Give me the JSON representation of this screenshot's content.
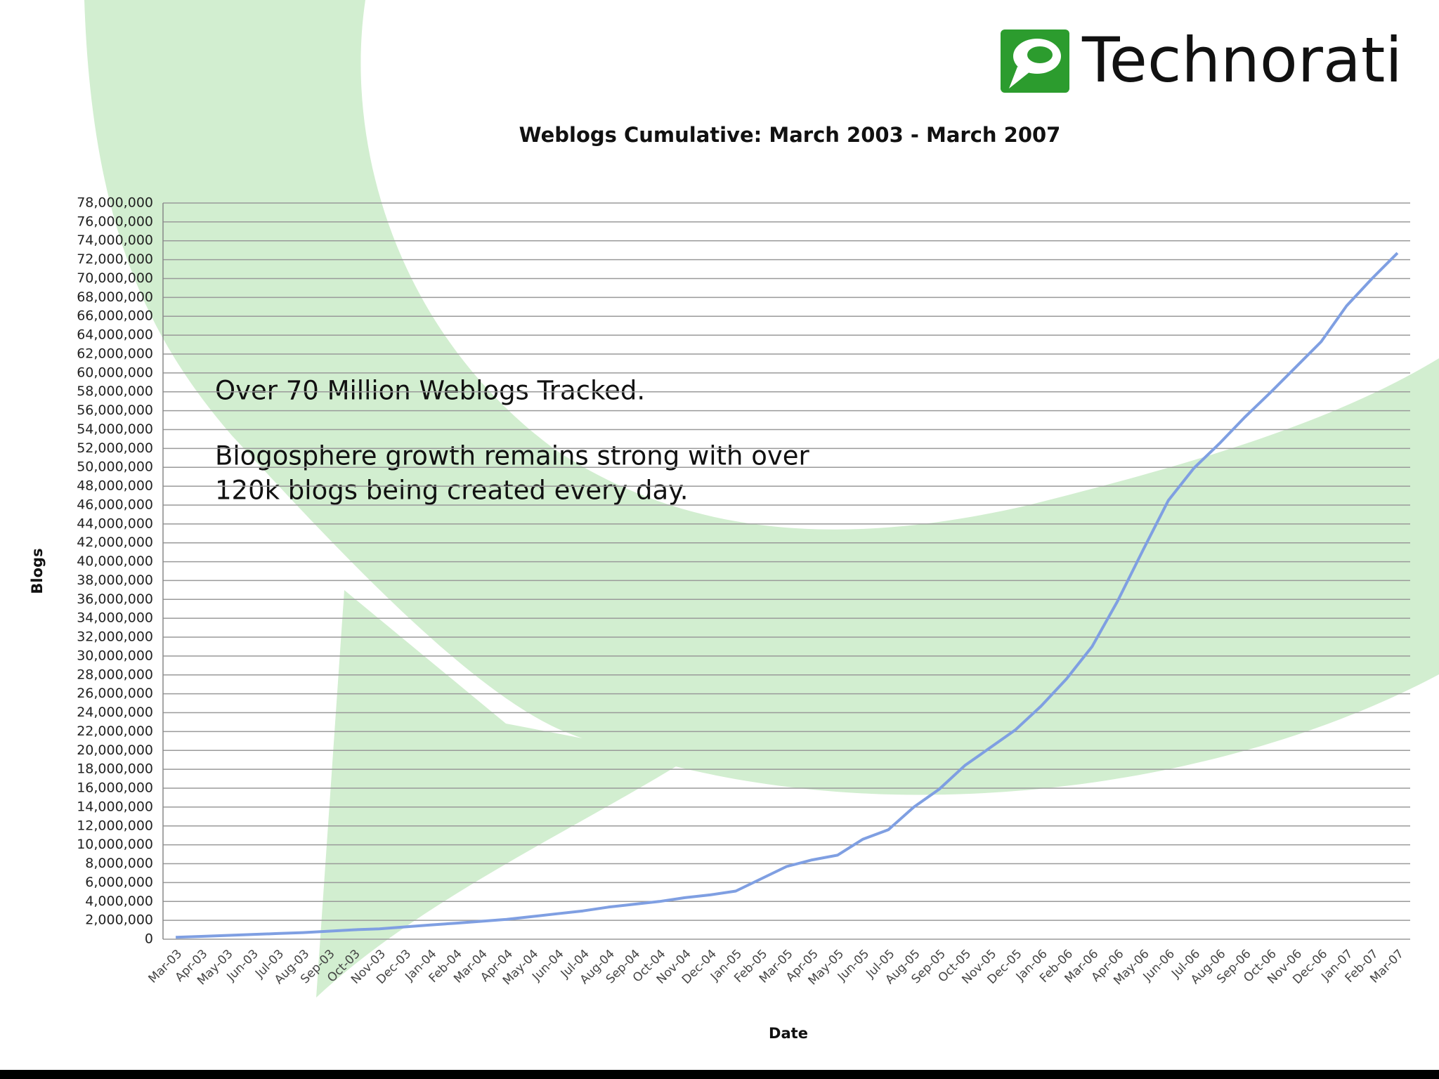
{
  "logo": "Technorati",
  "chart_data": {
    "type": "line",
    "title": "Weblogs Cumulative: March 2003 - March 2007",
    "annotations": [
      "Over 70 Million Weblogs Tracked.",
      "Blogosphere growth remains strong with over",
      "120k blogs being created every day."
    ],
    "xlabel": "Date",
    "ylabel": "Blogs",
    "categories": [
      "Mar-03",
      "Apr-03",
      "May-03",
      "Jun-03",
      "Jul-03",
      "Aug-03",
      "Sep-03",
      "Oct-03",
      "Nov-03",
      "Dec-03",
      "Jan-04",
      "Feb-04",
      "Mar-04",
      "Apr-04",
      "May-04",
      "Jun-04",
      "Jul-04",
      "Aug-04",
      "Sep-04",
      "Oct-04",
      "Nov-04",
      "Dec-04",
      "Jan-05",
      "Feb-05",
      "Mar-05",
      "Apr-05",
      "May-05",
      "Jun-05",
      "Jul-05",
      "Aug-05",
      "Sep-05",
      "Oct-05",
      "Nov-05",
      "Dec-05",
      "Jan-06",
      "Feb-06",
      "Mar-06",
      "Apr-06",
      "May-06",
      "Jun-06",
      "Jul-06",
      "Aug-06",
      "Sep-06",
      "Oct-06",
      "Nov-06",
      "Dec-06",
      "Jan-07",
      "Feb-07",
      "Mar-07"
    ],
    "values": [
      200000,
      300000,
      400000,
      500000,
      600000,
      700000,
      850000,
      1000000,
      1100000,
      1300000,
      1500000,
      1700000,
      1900000,
      2100000,
      2400000,
      2700000,
      3000000,
      3400000,
      3700000,
      4000000,
      4400000,
      4700000,
      5100000,
      6400000,
      7700000,
      8400000,
      8900000,
      10600000,
      11600000,
      14000000,
      15900000,
      18400000,
      20300000,
      22200000,
      24700000,
      27600000,
      31000000,
      35800000,
      41200000,
      46500000,
      49900000,
      52500000,
      55300000,
      57900000,
      60600000,
      63300000,
      67100000,
      70000000,
      72700000
    ],
    "color": "#7f9fe2",
    "grid": true,
    "ylim": [
      0,
      78000000
    ],
    "yticks": [
      0,
      {
        "value": 2000000,
        "label": "2,000,000"
      },
      {
        "value": 4000000,
        "label": "4,000,000"
      },
      {
        "value": 6000000,
        "label": "6,000,000"
      },
      {
        "value": 8000000,
        "label": "8,000,000"
      },
      {
        "value": 10000000,
        "label": "10,000,000"
      },
      {
        "value": 12000000,
        "label": "12,000,000"
      },
      {
        "value": 14000000,
        "label": "14,000,000"
      },
      {
        "value": 16000000,
        "label": "16,000,000"
      },
      {
        "value": 18000000,
        "label": "18,000,000"
      },
      {
        "value": 20000000,
        "label": "20,000,000"
      },
      {
        "value": 22000000,
        "label": "22,000,000"
      },
      {
        "value": 24000000,
        "label": "24,000,000"
      },
      {
        "value": 26000000,
        "label": "26,000,000"
      },
      {
        "value": 28000000,
        "label": "28,000,000"
      },
      {
        "value": 30000000,
        "label": "30,000,000"
      },
      {
        "value": 32000000,
        "label": "32,000,000"
      },
      {
        "value": 34000000,
        "label": "34,000,000"
      },
      {
        "value": 36000000,
        "label": "36,000,000"
      },
      {
        "value": 38000000,
        "label": "38,000,000"
      },
      {
        "value": 40000000,
        "label": "40,000,000"
      },
      {
        "value": 42000000,
        "label": "42,000,000"
      },
      {
        "value": 44000000,
        "label": "44,000,000"
      },
      {
        "value": 46000000,
        "label": "46,000,000"
      },
      {
        "value": 48000000,
        "label": "48,000,000"
      },
      {
        "value": 50000000,
        "label": "50,000,000"
      },
      {
        "value": 52000000,
        "label": "52,000,000"
      },
      {
        "value": 54000000,
        "label": "54,000,000"
      },
      {
        "value": 56000000,
        "label": "56,000,000"
      },
      {
        "value": 58000000,
        "label": "58,000,000"
      },
      {
        "value": 60000000,
        "label": "60,000,000"
      },
      {
        "value": 62000000,
        "label": "62,000,000"
      },
      {
        "value": 64000000,
        "label": "64,000,000"
      },
      {
        "value": 66000000,
        "label": "66,000,000"
      },
      {
        "value": 68000000,
        "label": "68,000,000"
      },
      {
        "value": 70000000,
        "label": "70,000,000"
      },
      {
        "value": 72000000,
        "label": "72,000,000"
      },
      {
        "value": 74000000,
        "label": "74,000,000"
      },
      {
        "value": 76000000,
        "label": "76,000,000"
      },
      {
        "value": 78000000,
        "label": "78,000,000"
      }
    ]
  }
}
